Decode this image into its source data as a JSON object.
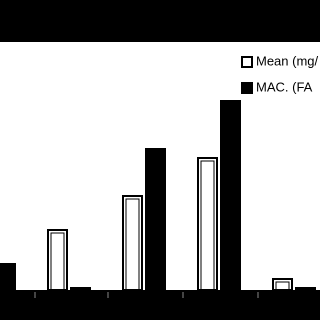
{
  "chart_data": {
    "type": "bar",
    "categories": [
      null,
      null,
      null,
      null,
      null
    ],
    "series": [
      {
        "name": "Mean (mg/",
        "color": "#ffffff",
        "values": [
          null,
          61,
          95,
          133,
          12
        ]
      },
      {
        "name": "MAC.   (FA",
        "color": "#000000",
        "values": [
          27,
          3,
          142,
          190,
          3
        ]
      }
    ],
    "ylim": [
      0,
      200
    ]
  }
}
